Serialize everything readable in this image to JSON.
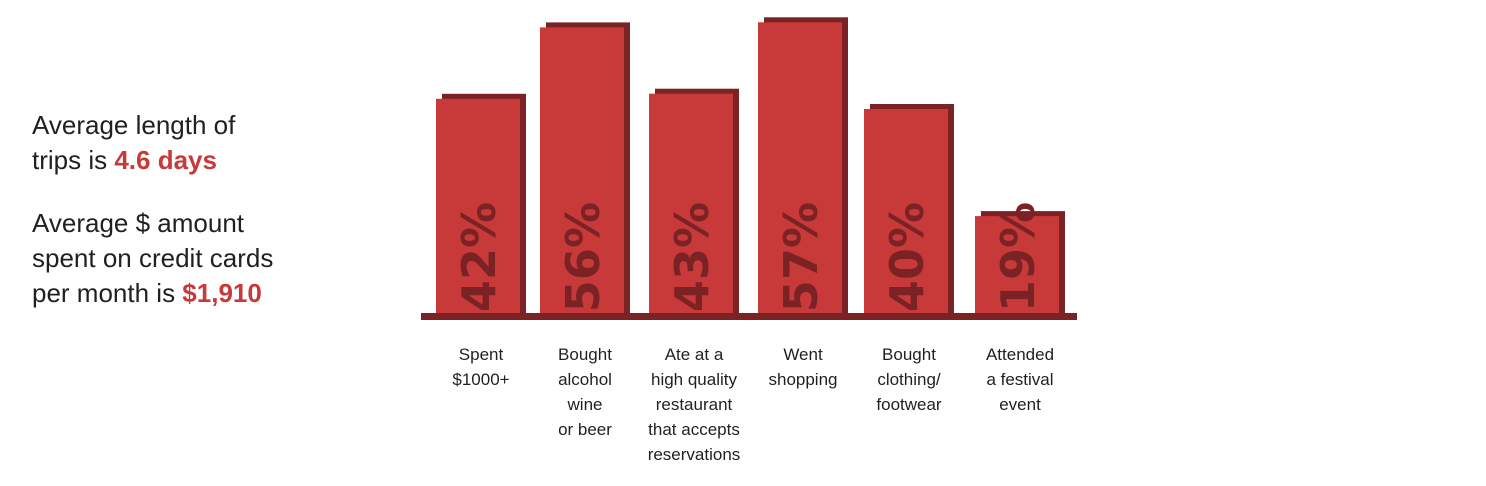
{
  "stats": {
    "trip": {
      "text": "Average length of\ntrips is ",
      "highlight": "4.6 days"
    },
    "spend": {
      "text": "Average $ amount\nspent on credit cards\nper month is ",
      "highlight": "$1,910"
    }
  },
  "chart_data": {
    "type": "bar",
    "categories": [
      "Spent\n$1000+",
      "Bought\nalcohol\nwine\nor beer",
      "Ate at a\nhigh quality\nrestaurant\nthat accepts\nreservations",
      "Went\nshopping",
      "Bought\nclothing/\nfootwear",
      "Attended\na festival\nevent"
    ],
    "values": [
      42,
      56,
      43,
      57,
      40,
      19
    ],
    "value_labels": [
      "42%",
      "56%",
      "43%",
      "57%",
      "40%",
      "19%"
    ],
    "unit": "%",
    "ylim": [
      0,
      60
    ],
    "colors": {
      "bar": "#c8393a",
      "shadow": "#7b2224",
      "baseline": "#7b2224",
      "label": "#7b2224"
    }
  }
}
